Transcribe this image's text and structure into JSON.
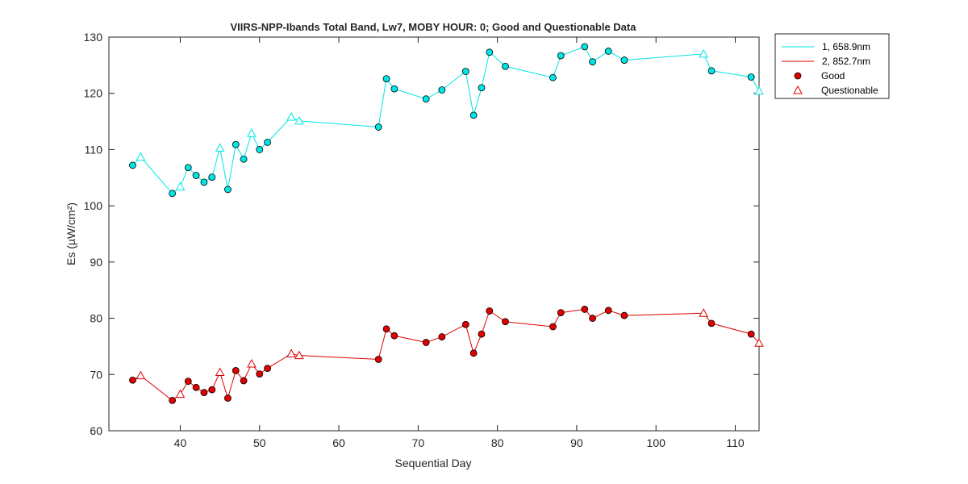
{
  "chart_data": {
    "type": "line",
    "title": "VIIRS-NPP-Ibands Total Band,  Lw7, MOBY HOUR: 0;  Good and Questionable Data",
    "xlabel": "Sequential Day",
    "ylabel": "Es (µW/cm²)",
    "xlim": [
      31,
      113
    ],
    "ylim": [
      60,
      130
    ],
    "xticks": [
      40,
      50,
      60,
      70,
      80,
      90,
      100,
      110
    ],
    "yticks": [
      60,
      70,
      80,
      90,
      100,
      110,
      120,
      130
    ],
    "grid": false,
    "legend_position": "outside-top-right",
    "x": [
      34,
      35,
      39,
      40,
      41,
      42,
      43,
      44,
      45,
      46,
      47,
      48,
      49,
      50,
      51,
      54,
      55,
      65,
      66,
      67,
      71,
      73,
      76,
      77,
      78,
      79,
      81,
      87,
      88,
      91,
      92,
      94,
      96,
      106,
      107,
      112,
      113
    ],
    "quality": [
      "good",
      "questionable",
      "good",
      "questionable",
      "good",
      "good",
      "good",
      "good",
      "questionable",
      "good",
      "good",
      "good",
      "questionable",
      "good",
      "good",
      "questionable",
      "questionable",
      "good",
      "good",
      "good",
      "good",
      "good",
      "good",
      "good",
      "good",
      "good",
      "good",
      "good",
      "good",
      "good",
      "good",
      "good",
      "good",
      "questionable",
      "good",
      "good",
      "questionable"
    ],
    "series": [
      {
        "name": "1, 658.9nm",
        "color": "#00e5e5",
        "values": [
          107.2,
          108.7,
          102.2,
          103.4,
          106.8,
          105.4,
          104.2,
          105.1,
          110.3,
          102.9,
          110.9,
          108.3,
          112.9,
          110.0,
          111.3,
          115.8,
          115.1,
          114.0,
          122.6,
          120.8,
          119.0,
          120.6,
          123.9,
          116.1,
          121.0,
          127.3,
          124.8,
          122.8,
          126.7,
          128.3,
          125.6,
          127.5,
          125.9,
          127.0,
          124.0,
          122.9,
          120.4
        ]
      },
      {
        "name": "2, 852.7nm",
        "color": "#e00000",
        "values": [
          69.0,
          69.8,
          65.4,
          66.5,
          68.8,
          67.7,
          66.8,
          67.3,
          70.4,
          65.8,
          70.7,
          68.9,
          71.9,
          70.1,
          71.1,
          73.7,
          73.4,
          72.7,
          78.1,
          76.9,
          75.7,
          76.7,
          78.9,
          73.8,
          77.2,
          81.3,
          79.4,
          78.5,
          81.0,
          81.6,
          80.0,
          81.4,
          80.5,
          80.9,
          79.1,
          77.2,
          75.6
        ]
      }
    ],
    "markers": {
      "good": "Good",
      "questionable": "Questionable"
    }
  }
}
